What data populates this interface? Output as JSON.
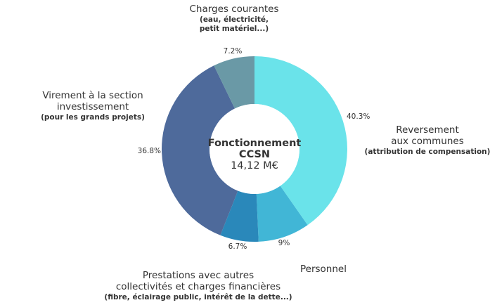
{
  "chart_data": {
    "type": "pie",
    "donut": true,
    "center_title_lines": [
      "Fonctionnement",
      "CCSN"
    ],
    "center_value": "14,12 M€",
    "slices": [
      {
        "label_lines": [
          "Reversement",
          "aux communes"
        ],
        "sub_lines": [
          "(attribution de compensation)"
        ],
        "value": 40.3,
        "value_label": "40.3%",
        "color": "#6ae3ea"
      },
      {
        "label_lines": [
          "Personnel"
        ],
        "sub_lines": [],
        "value": 9,
        "value_label": "9%",
        "color": "#41b6d6"
      },
      {
        "label_lines": [
          "Prestations avec autres",
          "collectivités et charges financières"
        ],
        "sub_lines": [
          "(fibre, éclairage public, intérêt de la dette...)"
        ],
        "value": 6.7,
        "value_label": "6.7%",
        "color": "#2a88ba"
      },
      {
        "label_lines": [
          "Virement à la section",
          "investissement"
        ],
        "sub_lines": [
          "(pour les grands projets)"
        ],
        "value": 36.8,
        "value_label": "36.8%",
        "color": "#4e6a9b"
      },
      {
        "label_lines": [
          "Charges courantes"
        ],
        "sub_lines": [
          "(eau, électricité,",
          "petit matériel...)"
        ],
        "value": 7.2,
        "value_label": "7.2%",
        "color": "#6a99a6"
      }
    ]
  }
}
